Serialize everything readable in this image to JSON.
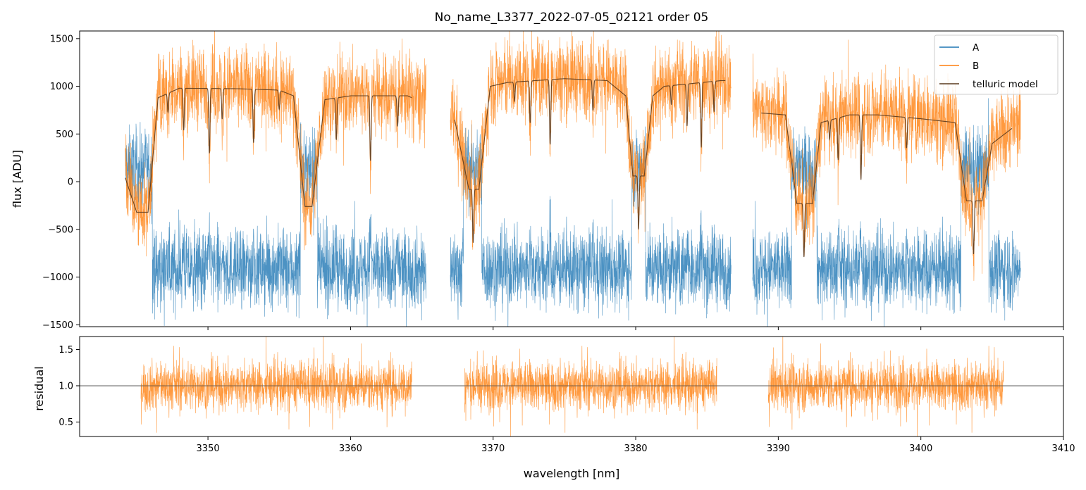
{
  "chart_data": [
    {
      "type": "line",
      "title": "No_name_L3377_2022-07-05_02121  order 05",
      "xlabel": "",
      "ylabel": "flux [ADU]",
      "xlim": [
        3341,
        3410
      ],
      "ylim": [
        -1520,
        1580
      ],
      "yticks": [
        -1500,
        -1000,
        -500,
        0,
        500,
        1000,
        1500
      ],
      "ytick_labels": [
        "−1500",
        "−1000",
        "−500",
        "0",
        "500",
        "1000",
        "1500"
      ],
      "xticks": [
        3350,
        3360,
        3370,
        3380,
        3390,
        3400,
        3410
      ],
      "legend": {
        "position": "top-right",
        "entries": [
          "A",
          "B",
          "telluric model"
        ]
      },
      "segments": [
        [
          3344.2,
          3365.3
        ],
        [
          3367.0,
          3386.7
        ],
        [
          3388.2,
          3407.0
        ]
      ],
      "series": [
        {
          "name": "A",
          "color": "#1f77b4",
          "baseline": -800,
          "noise_amplitude": 400,
          "description": "noisy spectrum around -800 to -1000 ADU with absorption features rising near telluric lines"
        },
        {
          "name": "B",
          "color": "#ff7f0e",
          "baseline": 950,
          "noise_amplitude": 420,
          "description": "noisy spectrum around 600 to 1100 ADU"
        },
        {
          "name": "telluric model",
          "color": "#5a3a1e",
          "continuum": [
            [
              3344.2,
              40
            ],
            [
              3345.0,
              -320
            ],
            [
              3345.8,
              -320
            ],
            [
              3346.5,
              880
            ],
            [
              3348.0,
              980
            ],
            [
              3352.0,
              975
            ],
            [
              3355.0,
              960
            ],
            [
              3356.0,
              900
            ],
            [
              3356.8,
              -260
            ],
            [
              3357.3,
              -260
            ],
            [
              3358.2,
              860
            ],
            [
              3360.0,
              900
            ],
            [
              3364.0,
              900
            ],
            [
              3364.3,
              880
            ],
            [
              3367.3,
              650
            ],
            [
              3368.3,
              -80
            ],
            [
              3369.0,
              -80
            ],
            [
              3369.8,
              1000
            ],
            [
              3371.0,
              1040
            ],
            [
              3375.0,
              1080
            ],
            [
              3378.0,
              1060
            ],
            [
              3379.3,
              900
            ],
            [
              3379.8,
              60
            ],
            [
              3380.6,
              60
            ],
            [
              3381.2,
              900
            ],
            [
              3382.0,
              1000
            ],
            [
              3386.0,
              1060
            ],
            [
              3386.3,
              1060
            ],
            [
              3388.8,
              720
            ],
            [
              3390.5,
              700
            ],
            [
              3391.3,
              -230
            ],
            [
              3392.4,
              -230
            ],
            [
              3393.0,
              620
            ],
            [
              3395.0,
              700
            ],
            [
              3397.0,
              700
            ],
            [
              3400.0,
              660
            ],
            [
              3402.4,
              620
            ],
            [
              3403.2,
              -200
            ],
            [
              3404.3,
              -200
            ],
            [
              3405.0,
              400
            ],
            [
              3406.4,
              560
            ]
          ],
          "lines": [
            3347.2,
            3348.3,
            3350.1,
            3351.0,
            3353.2,
            3355.0,
            3359.0,
            3361.4,
            3363.3,
            3368.6,
            3371.5,
            3372.6,
            3374.0,
            3377.0,
            3380.2,
            3382.5,
            3383.6,
            3384.6,
            3385.5,
            3391.8,
            3393.6,
            3394.2,
            3395.8,
            3399.0,
            3403.7
          ]
        }
      ]
    },
    {
      "type": "line",
      "xlabel": "wavelength [nm]",
      "ylabel": "residual",
      "xlim": [
        3341,
        3410
      ],
      "ylim": [
        0.3,
        1.68
      ],
      "yticks": [
        0.5,
        1.0,
        1.5
      ],
      "ytick_labels": [
        "0.5",
        "1.0",
        "1.5"
      ],
      "xticks": [
        3350,
        3360,
        3370,
        3380,
        3390,
        3400,
        3410
      ],
      "xtick_labels": [
        "3350",
        "3360",
        "3370",
        "3380",
        "3390",
        "3400",
        "3410"
      ],
      "reference_line": 1.0,
      "segments": [
        [
          3345.3,
          3364.3
        ],
        [
          3368.0,
          3385.7
        ],
        [
          3389.3,
          3405.8
        ]
      ],
      "series": [
        {
          "name": "B",
          "color": "#ff7f0e",
          "baseline": 1.0,
          "noise_amplitude": 0.6
        }
      ]
    }
  ]
}
